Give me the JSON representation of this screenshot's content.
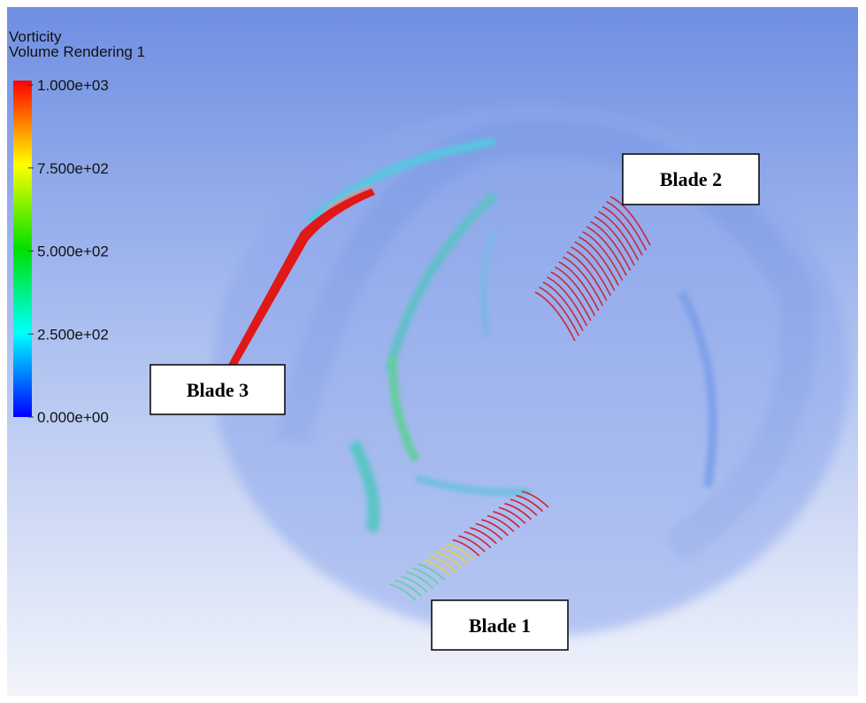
{
  "legend": {
    "title": "Vorticity",
    "subtitle": "Volume Rendering 1",
    "ticks": [
      {
        "value": 1000,
        "label": "1.000e+03"
      },
      {
        "value": 750,
        "label": "7.500e+02"
      },
      {
        "value": 500,
        "label": "5.000e+02"
      },
      {
        "value": 250,
        "label": "2.500e+02"
      },
      {
        "value": 0,
        "label": "0.000e+00"
      }
    ]
  },
  "labels": [
    "Blade 1",
    "Blade 2",
    "Blade 3"
  ]
}
